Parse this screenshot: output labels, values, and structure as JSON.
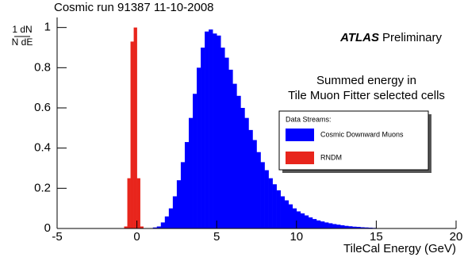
{
  "chart_data": {
    "type": "histogram",
    "title": "Cosmic run 91387 11-10-2008",
    "ylabel": {
      "numerator": "1 dN",
      "denominator": "N dE"
    },
    "xlabel": "TileCal Energy (GeV)",
    "annotations": {
      "experiment": "ATLAS",
      "status": "Preliminary",
      "line1": "Summed energy in",
      "line2": "Tile Muon Fitter selected cells"
    },
    "legend_title": "Data Streams:",
    "legend_position": "right",
    "xlim": [
      -5,
      20
    ],
    "xticks": [
      -5,
      0,
      5,
      10,
      15,
      20
    ],
    "ylim": [
      0,
      1.05
    ],
    "yticks": [
      0,
      0.2,
      0.4,
      0.6,
      0.8,
      1
    ],
    "series": [
      {
        "name": "Cosmic Downward Muons",
        "color": "#0000ff",
        "bins": [
          1,
          1.25,
          1.5,
          1.75,
          2,
          2.25,
          2.5,
          2.75,
          3,
          3.25,
          3.5,
          3.75,
          4,
          4.25,
          4.5,
          4.75,
          5,
          5.25,
          5.5,
          5.75,
          6,
          6.25,
          6.5,
          6.75,
          7,
          7.25,
          7.5,
          7.75,
          8,
          8.25,
          8.5,
          8.75,
          9,
          9.25,
          9.5,
          9.75,
          10,
          10.25,
          10.5,
          10.75,
          11,
          11.25,
          11.5,
          11.75,
          12,
          12.25,
          12.5,
          12.75,
          13,
          13.25,
          13.5,
          13.75,
          14,
          14.25,
          14.5,
          14.75,
          15
        ],
        "values": [
          0.005,
          0.01,
          0.03,
          0.06,
          0.1,
          0.16,
          0.24,
          0.33,
          0.43,
          0.55,
          0.67,
          0.8,
          0.9,
          0.98,
          0.99,
          0.97,
          0.96,
          0.9,
          0.85,
          0.79,
          0.72,
          0.66,
          0.6,
          0.55,
          0.49,
          0.44,
          0.38,
          0.33,
          0.29,
          0.25,
          0.22,
          0.19,
          0.16,
          0.14,
          0.12,
          0.1,
          0.085,
          0.075,
          0.065,
          0.055,
          0.047,
          0.04,
          0.035,
          0.03,
          0.026,
          0.022,
          0.019,
          0.016,
          0.013,
          0.011,
          0.009,
          0.008,
          0.006,
          0.005,
          0.004,
          0.003
        ]
      },
      {
        "name": "RNDM",
        "color": "#e8251c",
        "bins": [
          -0.8,
          -0.6,
          -0.4,
          -0.2,
          0,
          0.2,
          0.4
        ],
        "values": [
          0.01,
          0.25,
          0.93,
          1.0,
          0.25,
          0.01
        ]
      }
    ]
  }
}
